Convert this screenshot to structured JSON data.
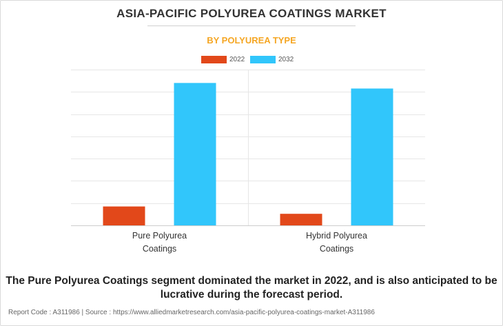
{
  "title": "ASIA-PACIFIC POLYUREA COATINGS MARKET",
  "subtitle": "BY POLYUREA TYPE",
  "colors": {
    "series_2022": "#e2481a",
    "series_2032": "#31c6fb",
    "subtitle": "#f5a623",
    "grid": "#e6e6e6"
  },
  "chart_data": {
    "type": "bar",
    "title": "ASIA-PACIFIC POLYUREA COATINGS MARKET",
    "subtitle": "BY POLYUREA TYPE",
    "categories": [
      "Pure Polyurea Coatings",
      "Hybrid Polyurea Coatings"
    ],
    "category_lines": [
      [
        "Pure Polyurea",
        "Coatings"
      ],
      [
        "Hybrid Polyurea",
        "Coatings"
      ]
    ],
    "series": [
      {
        "name": "2022",
        "values": [
          0.85,
          0.52
        ]
      },
      {
        "name": "2032",
        "values": [
          6.4,
          6.15
        ]
      }
    ],
    "ylim": [
      0,
      7
    ],
    "ytick_step": 1,
    "grid": true,
    "legend": "top-center",
    "yaxis_labels_shown": false
  },
  "note": "The Pure Polyurea Coatings segment dominated the market in 2022, and is also anticipated to be lucrative during the forecast period.",
  "footer": "Report Code : A311986  |  Source : https://www.alliedmarketresearch.com/asia-pacific-polyurea-coatings-market-A311986"
}
